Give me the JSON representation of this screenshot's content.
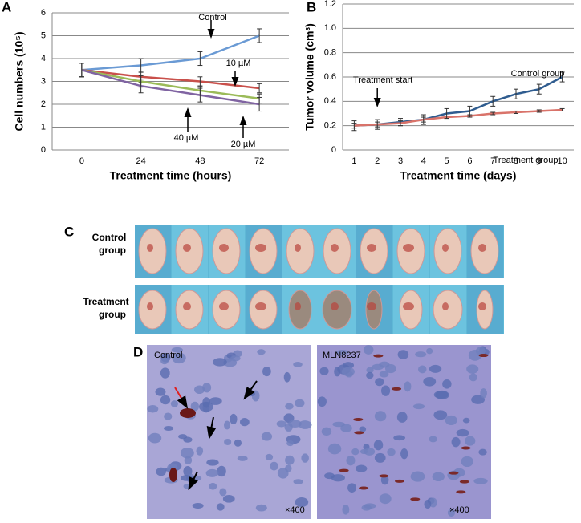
{
  "chart_data": [
    {
      "type": "line",
      "panel": "A",
      "xlabel": "Treatment time (hours)",
      "ylabel": "Cell numbers (10⁵)",
      "categories": [
        "0",
        "24",
        "48",
        "72"
      ],
      "ylim": [
        0,
        6
      ],
      "yticks": [
        0,
        1,
        2,
        3,
        4,
        5,
        6
      ],
      "grid": true,
      "series": [
        {
          "name": "Control",
          "color": "#6a9ad4",
          "values": [
            3.5,
            3.7,
            4.0,
            5.0
          ],
          "errors": [
            0.3,
            0.3,
            0.3,
            0.3
          ]
        },
        {
          "name": "10 µM",
          "color": "#c9504b",
          "values": [
            3.5,
            3.2,
            3.0,
            2.7
          ],
          "errors": [
            0.3,
            0.25,
            0.2,
            0.2
          ]
        },
        {
          "name": "40 µM",
          "color": "#9bbb59",
          "values": [
            3.5,
            3.0,
            2.6,
            2.25
          ],
          "errors": [
            0.3,
            0.25,
            0.2,
            0.2
          ]
        },
        {
          "name": "20 µM",
          "color": "#8064a2",
          "values": [
            3.5,
            2.8,
            2.4,
            2.0
          ],
          "errors": [
            0.3,
            0.3,
            0.3,
            0.3
          ]
        }
      ]
    },
    {
      "type": "line",
      "panel": "B",
      "xlabel": "Treatment time (days)",
      "ylabel": "Tumor volume (cm³)",
      "categories": [
        "1",
        "2",
        "3",
        "4",
        "5",
        "6",
        "7",
        "8",
        "9",
        "10"
      ],
      "ylim": [
        0,
        1.2
      ],
      "yticks": [
        0,
        0.2,
        0.4,
        0.6,
        0.8,
        {
          "value": 1,
          "label": "1.0"
        },
        1.2
      ],
      "grid": true,
      "annotation": "Treatment start",
      "series": [
        {
          "name": "Control group",
          "color": "#2f5c8f",
          "values": [
            0.2,
            0.21,
            0.23,
            0.25,
            0.3,
            0.32,
            0.4,
            0.46,
            0.5,
            0.6
          ],
          "errors": [
            0.04,
            0.04,
            0.03,
            0.04,
            0.04,
            0.04,
            0.04,
            0.04,
            0.04,
            0.04
          ]
        },
        {
          "name": "Treatment group",
          "color": "#d9736a",
          "values": [
            0.2,
            0.21,
            0.22,
            0.25,
            0.27,
            0.28,
            0.3,
            0.31,
            0.32,
            0.33
          ],
          "errors": [
            0.02,
            0.02,
            0.02,
            0.02,
            0.01,
            0.01,
            0.01,
            0.01,
            0.01,
            0.01
          ]
        }
      ]
    }
  ],
  "photos": {
    "panel": "C",
    "rows": [
      "Control group",
      "Treatment group"
    ]
  },
  "micrographs": {
    "panel": "D",
    "images": [
      {
        "caption": "Control",
        "magnification": "×400"
      },
      {
        "caption": "MLN8237",
        "magnification": "×400"
      }
    ]
  }
}
